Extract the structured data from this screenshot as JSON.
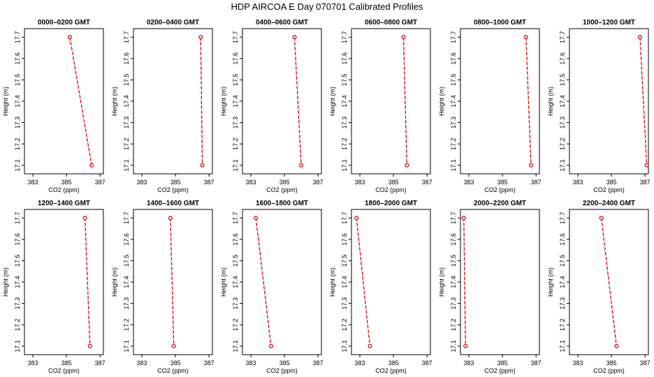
{
  "title": "HDP  AIRCOA E  Day 070701  Calibrated Profiles",
  "style": {
    "line_color": "#dd0000",
    "point_color": "#dd0000",
    "frame_color": "#000000"
  },
  "chart_data": [
    {
      "type": "line",
      "title": "0000–0200 GMT",
      "xlabel": "CO2 (ppm)",
      "ylabel": "Height (m)",
      "xlim": [
        382.5,
        387.2
      ],
      "ylim": [
        17.06,
        17.74
      ],
      "xticks": [
        383,
        385,
        387
      ],
      "yticks": [
        17.1,
        17.2,
        17.3,
        17.4,
        17.5,
        17.6,
        17.7
      ],
      "x": [
        385.2,
        386.5
      ],
      "y": [
        17.7,
        17.1
      ]
    },
    {
      "type": "line",
      "title": "0200–0400 GMT",
      "xlabel": "CO2 (ppm)",
      "ylabel": "Height (m)",
      "xlim": [
        382.5,
        387.2
      ],
      "ylim": [
        17.06,
        17.74
      ],
      "xticks": [
        383,
        385,
        387
      ],
      "yticks": [
        17.1,
        17.2,
        17.3,
        17.4,
        17.5,
        17.6,
        17.7
      ],
      "x": [
        386.5,
        386.6
      ],
      "y": [
        17.7,
        17.1
      ]
    },
    {
      "type": "line",
      "title": "0400–0600 GMT",
      "xlabel": "CO2 (ppm)",
      "ylabel": "Height (m)",
      "xlim": [
        382.5,
        387.2
      ],
      "ylim": [
        17.06,
        17.74
      ],
      "xticks": [
        383,
        385,
        387
      ],
      "yticks": [
        17.1,
        17.2,
        17.3,
        17.4,
        17.5,
        17.6,
        17.7
      ],
      "x": [
        385.6,
        386.0
      ],
      "y": [
        17.7,
        17.1
      ]
    },
    {
      "type": "line",
      "title": "0600–0800 GMT",
      "xlabel": "CO2 (ppm)",
      "ylabel": "Height (m)",
      "xlim": [
        382.5,
        387.2
      ],
      "ylim": [
        17.06,
        17.74
      ],
      "xticks": [
        383,
        385,
        387
      ],
      "yticks": [
        17.1,
        17.2,
        17.3,
        17.4,
        17.5,
        17.6,
        17.7
      ],
      "x": [
        385.6,
        385.8
      ],
      "y": [
        17.7,
        17.1
      ]
    },
    {
      "type": "line",
      "title": "0800–1000 GMT",
      "xlabel": "CO2 (ppm)",
      "ylabel": "Height (m)",
      "xlim": [
        382.5,
        387.2
      ],
      "ylim": [
        17.06,
        17.74
      ],
      "xticks": [
        383,
        385,
        387
      ],
      "yticks": [
        17.1,
        17.2,
        17.3,
        17.4,
        17.5,
        17.6,
        17.7
      ],
      "x": [
        386.4,
        386.7
      ],
      "y": [
        17.7,
        17.1
      ]
    },
    {
      "type": "line",
      "title": "1000–1200 GMT",
      "xlabel": "CO2 (ppm)",
      "ylabel": "Height (m)",
      "xlim": [
        382.5,
        387.2
      ],
      "ylim": [
        17.06,
        17.74
      ],
      "xticks": [
        383,
        385,
        387
      ],
      "yticks": [
        17.1,
        17.2,
        17.3,
        17.4,
        17.5,
        17.6,
        17.7
      ],
      "x": [
        386.7,
        387.1
      ],
      "y": [
        17.7,
        17.1
      ]
    },
    {
      "type": "line",
      "title": "1200–1400 GMT",
      "xlabel": "CO2 (ppm)",
      "ylabel": "Height (m)",
      "xlim": [
        382.5,
        387.2
      ],
      "ylim": [
        17.06,
        17.74
      ],
      "xticks": [
        383,
        385,
        387
      ],
      "yticks": [
        17.1,
        17.2,
        17.3,
        17.4,
        17.5,
        17.6,
        17.7
      ],
      "x": [
        386.1,
        386.4
      ],
      "y": [
        17.7,
        17.1
      ]
    },
    {
      "type": "line",
      "title": "1400–1600 GMT",
      "xlabel": "CO2 (ppm)",
      "ylabel": "Height (m)",
      "xlim": [
        382.5,
        387.2
      ],
      "ylim": [
        17.06,
        17.74
      ],
      "xticks": [
        383,
        385,
        387
      ],
      "yticks": [
        17.1,
        17.2,
        17.3,
        17.4,
        17.5,
        17.6,
        17.7
      ],
      "x": [
        384.7,
        384.9
      ],
      "y": [
        17.7,
        17.1
      ]
    },
    {
      "type": "line",
      "title": "1600–1800 GMT",
      "xlabel": "CO2 (ppm)",
      "ylabel": "Height (m)",
      "xlim": [
        382.5,
        387.2
      ],
      "ylim": [
        17.06,
        17.74
      ],
      "xticks": [
        383,
        385,
        387
      ],
      "yticks": [
        17.1,
        17.2,
        17.3,
        17.4,
        17.5,
        17.6,
        17.7
      ],
      "x": [
        383.3,
        384.2
      ],
      "y": [
        17.7,
        17.1
      ]
    },
    {
      "type": "line",
      "title": "1800–2000 GMT",
      "xlabel": "CO2 (ppm)",
      "ylabel": "Height (m)",
      "xlim": [
        382.5,
        387.2
      ],
      "ylim": [
        17.06,
        17.74
      ],
      "xticks": [
        383,
        385,
        387
      ],
      "yticks": [
        17.1,
        17.2,
        17.3,
        17.4,
        17.5,
        17.6,
        17.7
      ],
      "x": [
        382.8,
        383.6
      ],
      "y": [
        17.7,
        17.1
      ]
    },
    {
      "type": "line",
      "title": "2000–2200 GMT",
      "xlabel": "CO2 (ppm)",
      "ylabel": "Height (m)",
      "xlim": [
        382.5,
        387.2
      ],
      "ylim": [
        17.06,
        17.74
      ],
      "xticks": [
        383,
        385,
        387
      ],
      "yticks": [
        17.1,
        17.2,
        17.3,
        17.4,
        17.5,
        17.6,
        17.7
      ],
      "x": [
        382.7,
        382.8
      ],
      "y": [
        17.7,
        17.1
      ]
    },
    {
      "type": "line",
      "title": "2200–2400 GMT",
      "xlabel": "CO2 (ppm)",
      "ylabel": "Height (m)",
      "xlim": [
        382.5,
        387.2
      ],
      "ylim": [
        17.06,
        17.74
      ],
      "xticks": [
        383,
        385,
        387
      ],
      "yticks": [
        17.1,
        17.2,
        17.3,
        17.4,
        17.5,
        17.6,
        17.7
      ],
      "x": [
        384.4,
        385.3
      ],
      "y": [
        17.7,
        17.1
      ]
    }
  ]
}
